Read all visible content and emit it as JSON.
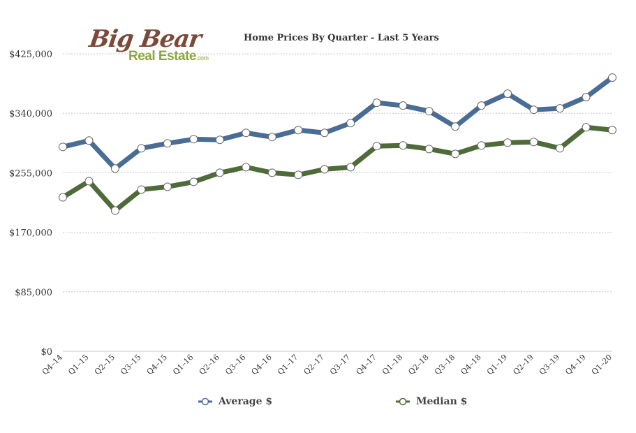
{
  "logo": {
    "line1": "Big Bear",
    "line2": "Real Estate",
    "suffix": ".com"
  },
  "chart_data": {
    "type": "line",
    "title": "Home Prices By Quarter - Last 5 Years",
    "xlabel": "",
    "ylabel": "",
    "categories": [
      "Q4–14",
      "Q1–15",
      "Q2–15",
      "Q3–15",
      "Q4–15",
      "Q1–16",
      "Q2–16",
      "Q3–16",
      "Q4–16",
      "Q1–17",
      "Q2–17",
      "Q3–17",
      "Q4–17",
      "Q1–18",
      "Q2–18",
      "Q3–18",
      "Q4–18",
      "Q1–19",
      "Q2–19",
      "Q3–19",
      "Q4–19",
      "Q1–20"
    ],
    "ylim": [
      0,
      425000
    ],
    "yticks": [
      0,
      85000,
      170000,
      255000,
      340000,
      425000
    ],
    "ytick_labels": [
      "$0",
      "$85,000",
      "$170,000",
      "$255,000",
      "$340,000",
      "$425,000"
    ],
    "grid": true,
    "legend_position": "bottom",
    "series": [
      {
        "name": "Average $",
        "color": "#4a6d96",
        "values": [
          292000,
          301000,
          261000,
          290000,
          297000,
          303000,
          302000,
          312000,
          306000,
          316000,
          312000,
          326000,
          355000,
          351000,
          343000,
          321000,
          351000,
          368000,
          345000,
          347000,
          363000,
          391000
        ]
      },
      {
        "name": "Median $",
        "color": "#4f6b3a",
        "values": [
          220000,
          243000,
          201000,
          231000,
          235000,
          242000,
          255000,
          263000,
          255000,
          252000,
          260000,
          263000,
          293000,
          294000,
          289000,
          282000,
          294000,
          298000,
          299000,
          290000,
          320000,
          316000
        ]
      }
    ]
  }
}
